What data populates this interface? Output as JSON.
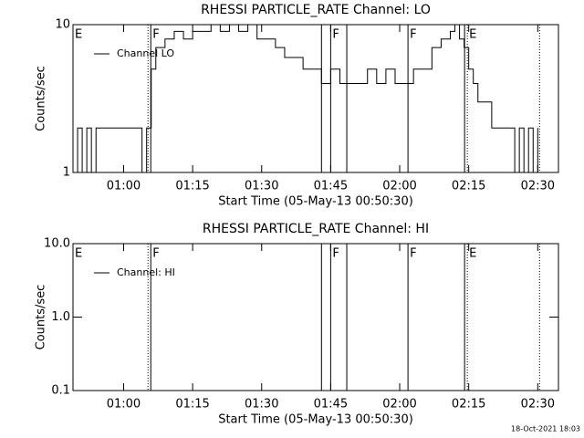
{
  "chart_data": [
    {
      "type": "line",
      "title": "RHESSI PARTICLE_RATE Channel: LO",
      "xlabel": "Start Time (05-May-13 00:50:30)",
      "ylabel": "Counts/sec",
      "log_y": true,
      "xlim": [
        49,
        154.5
      ],
      "ylim": [
        1,
        10
      ],
      "xticks": [
        {
          "value": 60,
          "label": "01:00"
        },
        {
          "value": 75,
          "label": "01:15"
        },
        {
          "value": 90,
          "label": "01:30"
        },
        {
          "value": 105,
          "label": "01:45"
        },
        {
          "value": 120,
          "label": "02:00"
        },
        {
          "value": 135,
          "label": "02:15"
        },
        {
          "value": 150,
          "label": "02:30"
        }
      ],
      "yticks": [
        1,
        10
      ],
      "x": [
        49,
        50,
        51,
        52,
        53,
        54,
        55,
        56,
        57,
        58,
        59,
        60,
        61,
        62,
        63,
        64,
        65,
        66,
        67,
        69,
        71,
        73,
        75,
        77,
        79,
        81,
        83,
        85,
        87,
        89,
        91,
        93,
        95,
        97,
        99,
        101,
        103,
        105,
        107,
        109,
        111,
        113,
        115,
        117,
        119,
        121,
        123,
        125,
        127,
        129,
        131,
        132,
        133,
        134,
        135,
        136,
        137,
        138,
        140,
        142,
        144,
        145,
        146,
        147,
        148,
        149,
        150
      ],
      "series": [
        {
          "name": "Channel LO",
          "color": "#000000",
          "values": [
            1,
            2,
            1,
            2,
            1,
            2,
            2,
            2,
            2,
            2,
            2,
            2,
            2,
            2,
            2,
            1,
            2,
            5,
            7,
            8,
            9,
            8,
            9,
            9,
            10,
            9,
            10,
            9,
            10,
            8,
            8,
            7,
            6,
            6,
            5,
            5,
            4,
            5,
            4,
            4,
            4,
            5,
            4,
            5,
            4,
            4,
            5,
            5,
            7,
            8,
            9,
            10,
            8,
            7,
            5,
            4,
            3,
            3,
            2,
            2,
            2,
            1,
            2,
            1,
            2,
            1,
            2
          ]
        }
      ],
      "annotations": [
        {
          "x": 49,
          "label": "E",
          "style": "solid"
        },
        {
          "x": 65.3,
          "style": "dotted"
        },
        {
          "x": 65.9,
          "label": "F",
          "style": "solid"
        },
        {
          "x": 103,
          "style": "solid"
        },
        {
          "x": 105,
          "label": "F",
          "style": "solid"
        },
        {
          "x": 108.5,
          "style": "solid"
        },
        {
          "x": 121.8,
          "label": "F",
          "style": "solid"
        },
        {
          "x": 134.1,
          "style": "solid"
        },
        {
          "x": 134.7,
          "label": "E",
          "style": "dotted"
        },
        {
          "x": 150.4,
          "style": "dotted"
        }
      ]
    },
    {
      "type": "line",
      "title": "RHESSI PARTICLE_RATE Channel: HI",
      "xlabel": "Start Time (05-May-13 00:50:30)",
      "ylabel": "Counts/sec",
      "log_y": true,
      "xlim": [
        49,
        154.5
      ],
      "ylim": [
        0.1,
        10
      ],
      "xticks": [
        {
          "value": 60,
          "label": "01:00"
        },
        {
          "value": 75,
          "label": "01:15"
        },
        {
          "value": 90,
          "label": "01:30"
        },
        {
          "value": 105,
          "label": "01:45"
        },
        {
          "value": 120,
          "label": "02:00"
        },
        {
          "value": 135,
          "label": "02:15"
        },
        {
          "value": 150,
          "label": "02:30"
        }
      ],
      "yticks": [
        {
          "value": 0.1,
          "label": "0.1"
        },
        {
          "value": 1,
          "label": "1.0"
        },
        {
          "value": 10,
          "label": "10.0"
        }
      ],
      "series": [
        {
          "name": "Channel: HI",
          "color": "#000000"
        }
      ],
      "annotations": [
        {
          "x": 49,
          "label": "E",
          "style": "solid"
        },
        {
          "x": 65.3,
          "style": "dotted"
        },
        {
          "x": 65.9,
          "label": "F",
          "style": "solid"
        },
        {
          "x": 103,
          "style": "solid"
        },
        {
          "x": 105,
          "label": "F",
          "style": "solid"
        },
        {
          "x": 108.5,
          "style": "solid"
        },
        {
          "x": 121.8,
          "label": "F",
          "style": "solid"
        },
        {
          "x": 134.1,
          "style": "solid"
        },
        {
          "x": 134.7,
          "label": "E",
          "style": "dotted"
        },
        {
          "x": 150.4,
          "style": "dotted"
        }
      ]
    }
  ],
  "footer": "18-Oct-2021 18:03"
}
